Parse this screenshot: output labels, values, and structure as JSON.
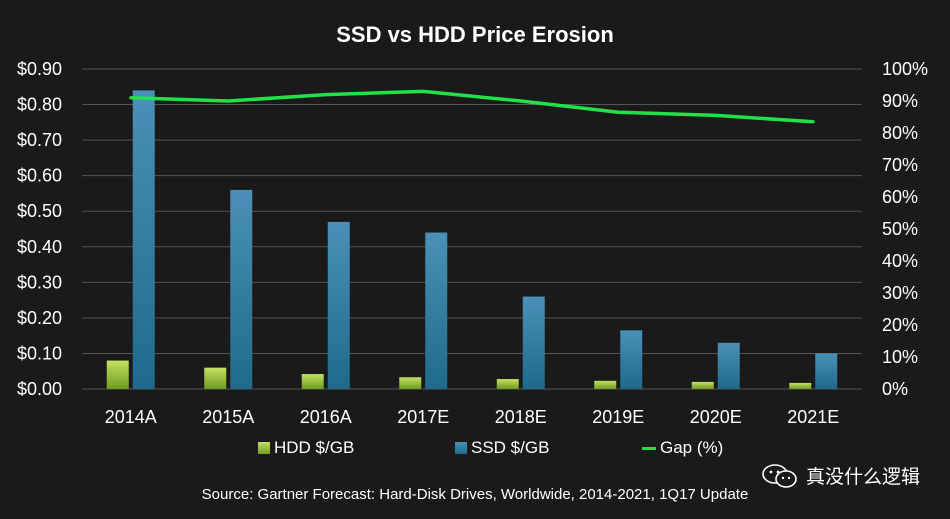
{
  "chart_data": {
    "type": "bar",
    "title": "SSD vs HDD Price Erosion",
    "categories": [
      "2014A",
      "2015A",
      "2016A",
      "2017E",
      "2018E",
      "2019E",
      "2020E",
      "2021E"
    ],
    "series": [
      {
        "name": "HDD $/GB",
        "type": "bar",
        "axis": "left",
        "color": "#8fbf34",
        "values": [
          0.08,
          0.06,
          0.042,
          0.033,
          0.028,
          0.023,
          0.02,
          0.017
        ]
      },
      {
        "name": "SSD $/GB",
        "type": "bar",
        "axis": "left",
        "color": "#2c7fa3",
        "values": [
          0.84,
          0.56,
          0.47,
          0.44,
          0.26,
          0.165,
          0.13,
          0.1
        ]
      },
      {
        "name": "Gap (%)",
        "type": "line",
        "axis": "right",
        "color": "#22e04a",
        "values": [
          91,
          90,
          92,
          93,
          90,
          86.5,
          85.5,
          83.5
        ]
      }
    ],
    "y_left": {
      "min": 0,
      "max": 0.9,
      "ticks": [
        "$0.00",
        "$0.10",
        "$0.20",
        "$0.30",
        "$0.40",
        "$0.50",
        "$0.60",
        "$0.70",
        "$0.80",
        "$0.90"
      ]
    },
    "y_right": {
      "min": 0,
      "max": 100,
      "ticks": [
        "0%",
        "10%",
        "20%",
        "30%",
        "40%",
        "50%",
        "60%",
        "70%",
        "80%",
        "90%",
        "100%"
      ]
    },
    "grid": true,
    "legend_position": "bottom"
  },
  "source": "Source: Gartner Forecast: Hard-Disk Drives, Worldwide, 2014-2021, 1Q17 Update",
  "watermark": "真没什么逻辑",
  "colors": {
    "background": "#1a1a1a",
    "grid": "#555555",
    "text": "#ffffff"
  },
  "icons": {
    "watermark_icon": "wechat-icon"
  }
}
